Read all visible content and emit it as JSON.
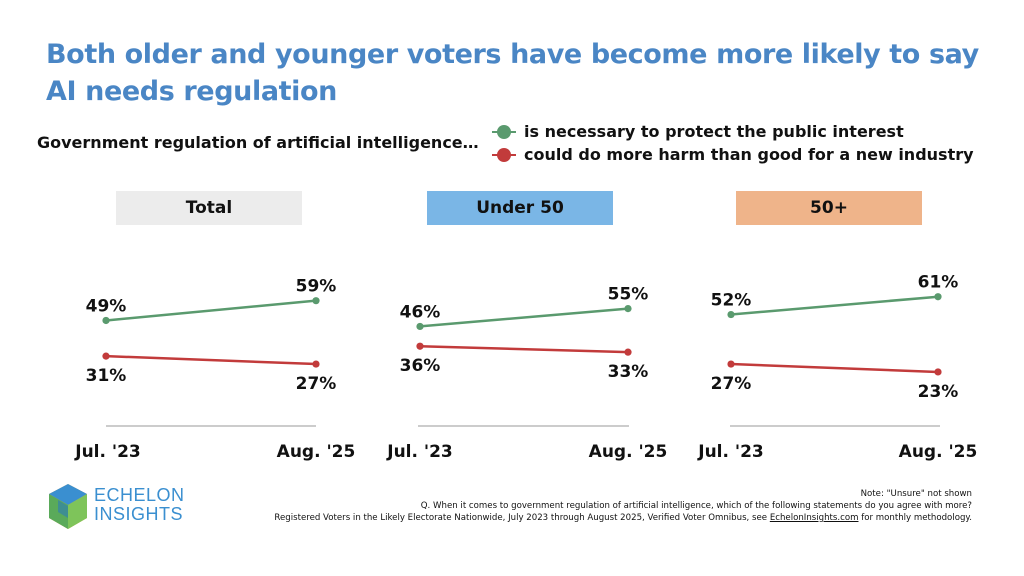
{
  "title": "Both older and younger voters have become more likely to say AI needs regulation",
  "legend": {
    "lead": "Government regulation of artificial intelligence…",
    "items": [
      {
        "label": "is necessary to protect the public interest",
        "color": "#5a9a6e"
      },
      {
        "label": "could do more harm than good for a new industry",
        "color": "#c23b3b"
      }
    ]
  },
  "panel_colors": [
    "#ececec",
    "#7ab6e6",
    "#efb48a"
  ],
  "chart_data": [
    {
      "type": "line",
      "title": "Total",
      "x": [
        "Jul. '23",
        "Aug. '25"
      ],
      "series": [
        {
          "name": "is necessary to protect the public interest",
          "values": [
            49,
            59
          ],
          "labels": [
            "49%",
            "59%"
          ],
          "color": "#5a9a6e"
        },
        {
          "name": "could do more harm than good for a new industry",
          "values": [
            31,
            27
          ],
          "labels": [
            "31%",
            "27%"
          ],
          "color": "#c23b3b"
        }
      ],
      "ylim": [
        0,
        100
      ]
    },
    {
      "type": "line",
      "title": "Under 50",
      "x": [
        "Jul. '23",
        "Aug. '25"
      ],
      "series": [
        {
          "name": "is necessary to protect the public interest",
          "values": [
            46,
            55
          ],
          "labels": [
            "46%",
            "55%"
          ],
          "color": "#5a9a6e"
        },
        {
          "name": "could do more harm than good for a new industry",
          "values": [
            36,
            33
          ],
          "labels": [
            "36%",
            "33%"
          ],
          "color": "#c23b3b"
        }
      ],
      "ylim": [
        0,
        100
      ]
    },
    {
      "type": "line",
      "title": "50+",
      "x": [
        "Jul. '23",
        "Aug. '25"
      ],
      "series": [
        {
          "name": "is necessary to protect the public interest",
          "values": [
            52,
            61
          ],
          "labels": [
            "52%",
            "61%"
          ],
          "color": "#5a9a6e"
        },
        {
          "name": "could do more harm than good for a new industry",
          "values": [
            27,
            23
          ],
          "labels": [
            "27%",
            "23%"
          ],
          "color": "#c23b3b"
        }
      ],
      "ylim": [
        0,
        100
      ]
    }
  ],
  "logo": {
    "line1": "ECHELON",
    "line2": "INSIGHTS"
  },
  "footnotes": {
    "line1": "Note: \"Unsure\" not shown",
    "line2": "Q. When it comes to government regulation of artificial intelligence, which of the following statements do you agree with more?",
    "line3_prefix": "Registered Voters in the Likely Electorate Nationwide, July 2023 through August 2025, Verified Voter Omnibus, see ",
    "line3_link": "EchelonInsights.com",
    "line3_suffix": " for monthly methodology."
  }
}
